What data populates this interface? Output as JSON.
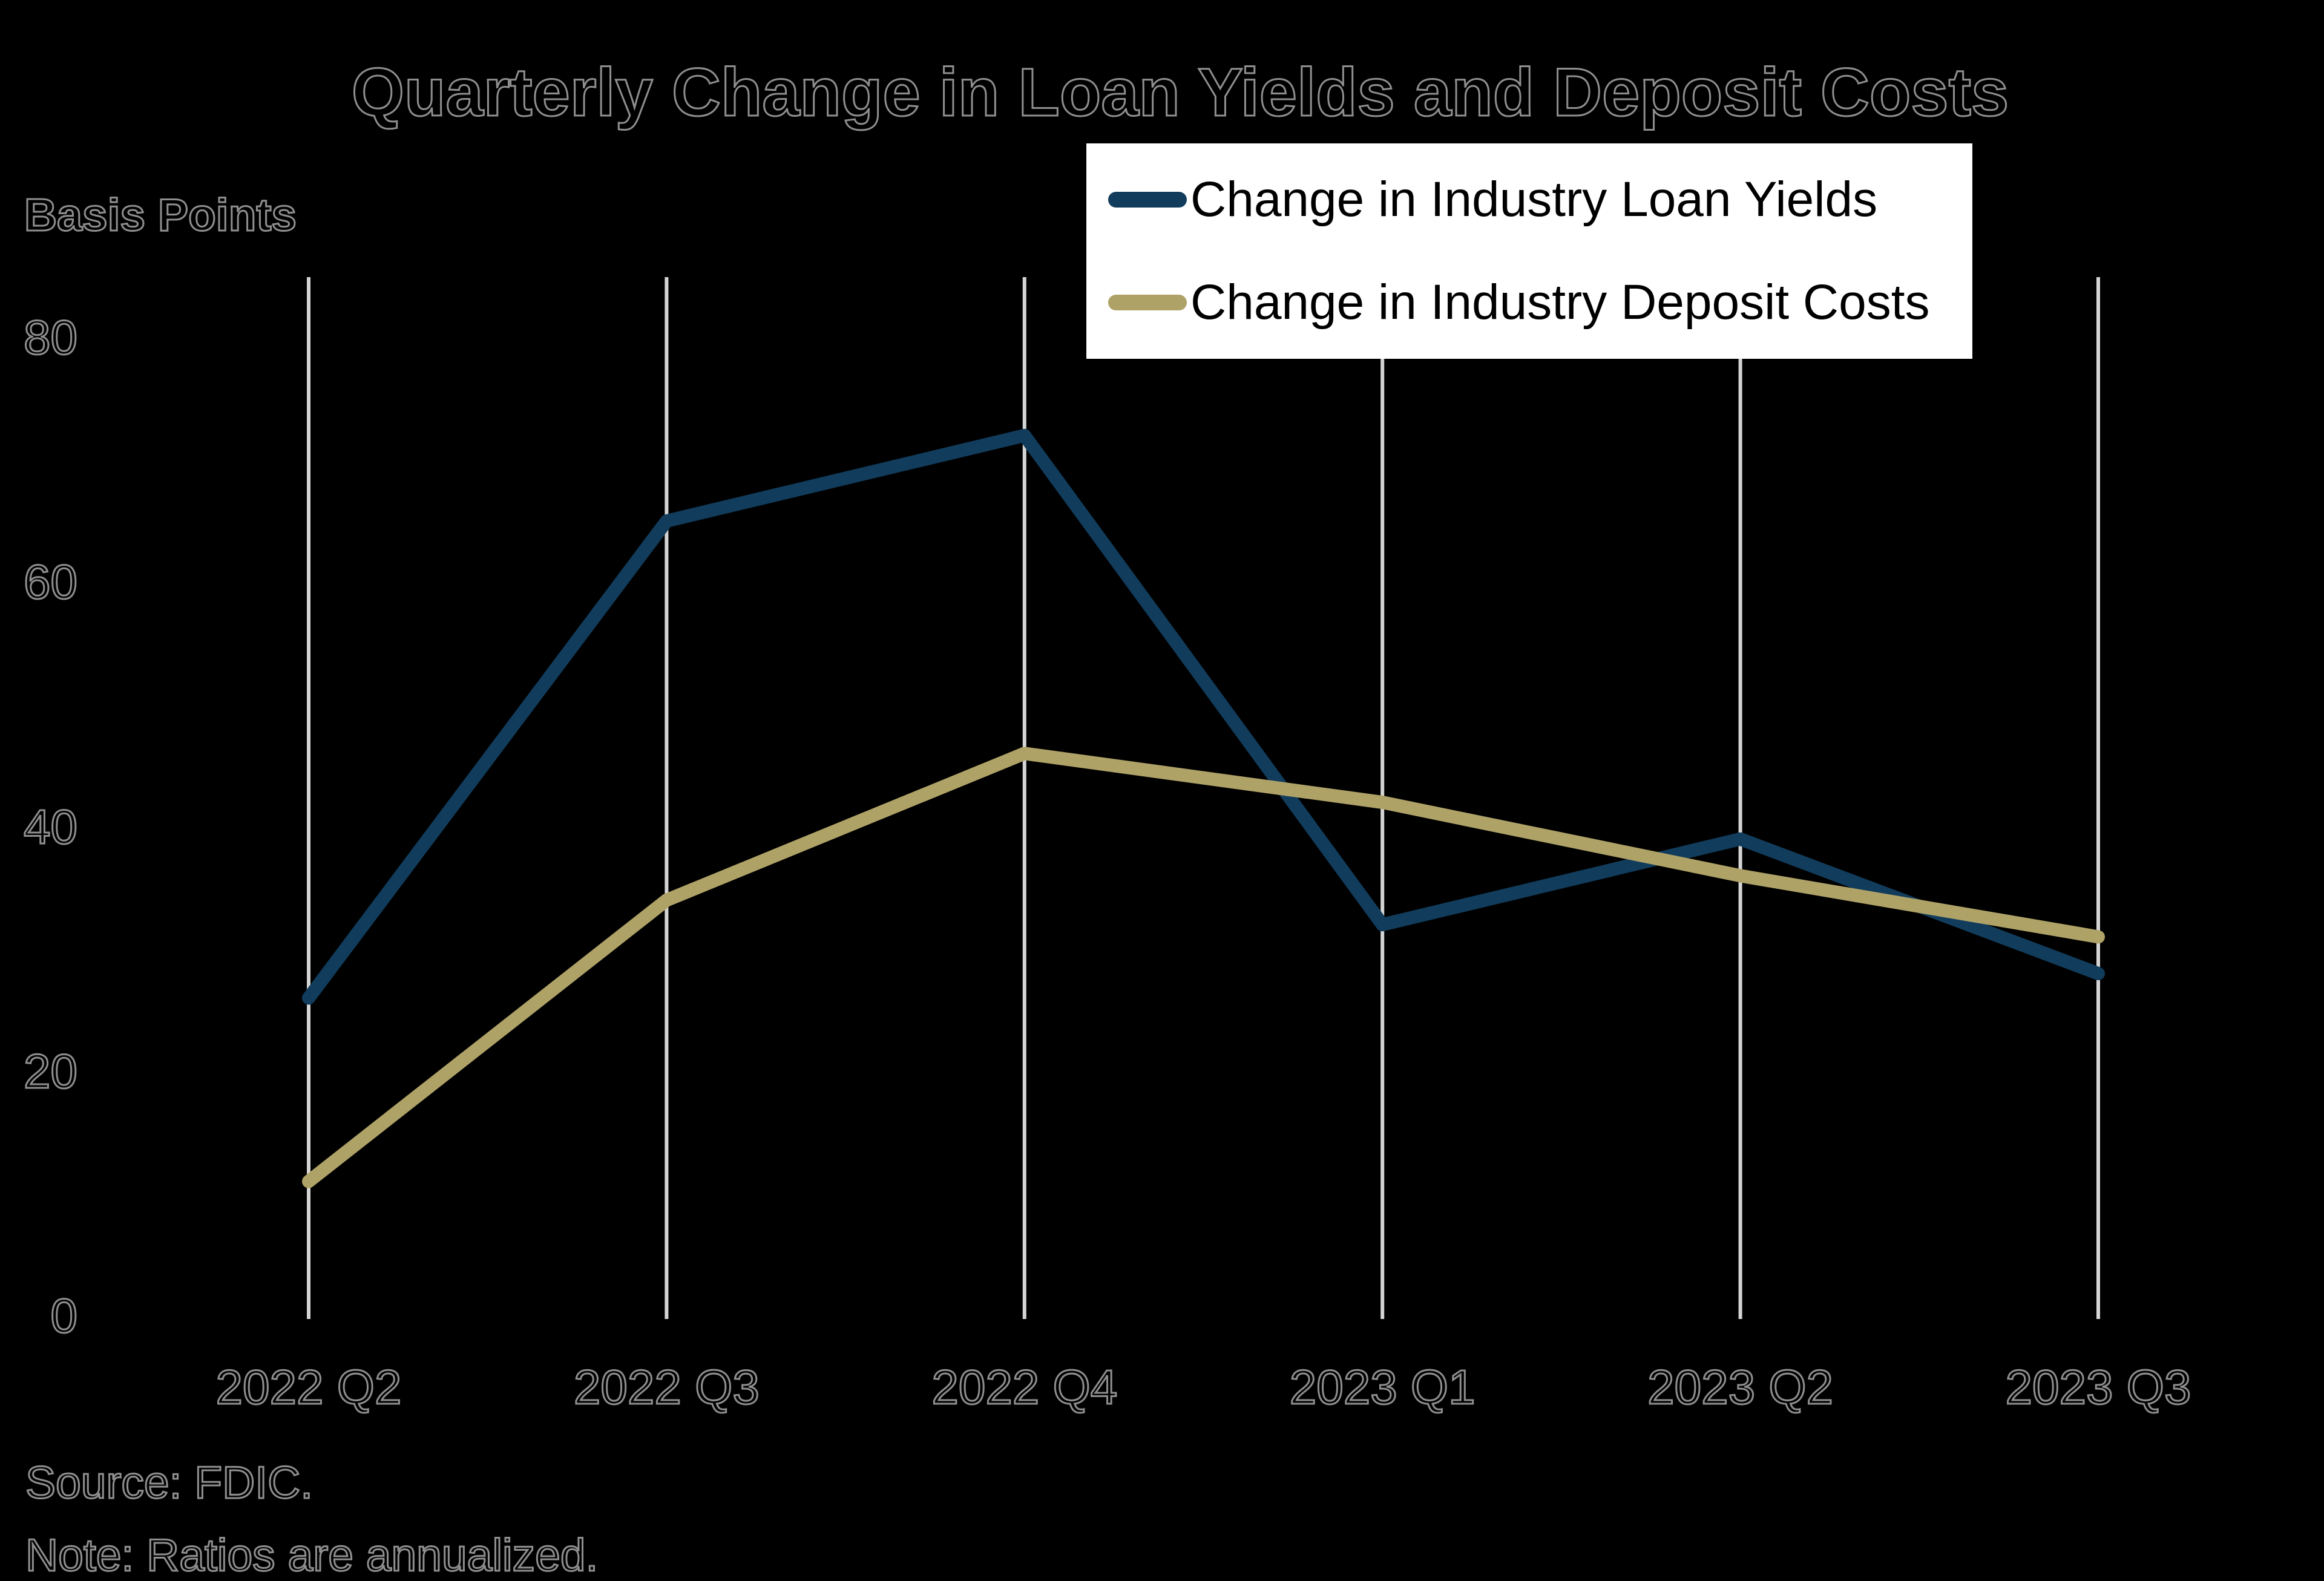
{
  "title": "Quarterly Change in Loan Yields and Deposit Costs",
  "y_axis": {
    "label": "Basis Points"
  },
  "source_line": "Source: FDIC.",
  "note_line": "Note: Ratios are annualized.",
  "colors": {
    "background": "#000000",
    "gridline": "#d4d4d4",
    "loan_yields_line": "#113c5c",
    "deposit_costs_line": "#afa267",
    "legend_background": "#ffffff",
    "legend_text": "#000000"
  },
  "chart_data": {
    "type": "line",
    "categories": [
      "2022 Q2",
      "2022 Q3",
      "2022 Q4",
      "2023 Q1",
      "2023 Q2",
      "2023 Q3"
    ],
    "series": [
      {
        "name": "Change in Industry Loan Yields",
        "color": "#113c5c",
        "values": [
          26,
          65,
          72,
          32,
          39,
          28
        ]
      },
      {
        "name": "Change in Industry Deposit Costs",
        "color": "#afa267",
        "values": [
          11,
          34,
          46,
          42,
          36,
          31
        ]
      }
    ],
    "title": "Quarterly Change in Loan Yields and Deposit Costs",
    "xlabel": "",
    "ylabel": "Basis Points",
    "ylim": [
      0,
      80
    ],
    "yticks": [
      0,
      20,
      40,
      60,
      80
    ],
    "grid": "vertical-only",
    "legend_position": "top-right"
  }
}
